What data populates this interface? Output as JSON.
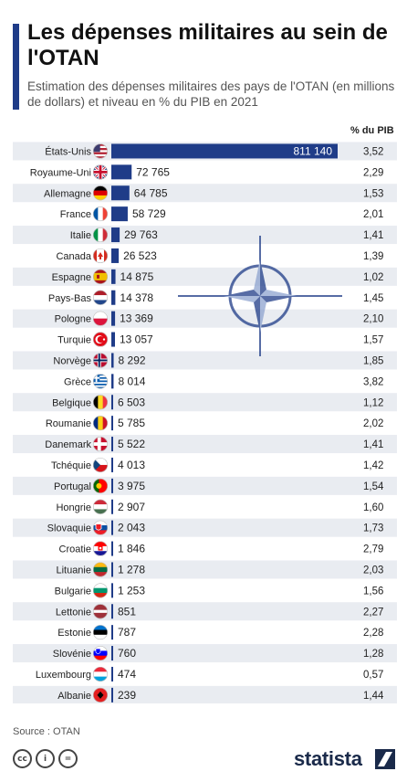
{
  "header": {
    "title": "Les dépenses militaires au sein de l'OTAN",
    "subtitle": "Estimation des dépenses militaires des pays de l'OTAN (en millions de dollars) et niveau en % du PIB en 2021"
  },
  "pib_header": "% du PIB",
  "footer": {
    "source": "Source : OTAN",
    "brand": "statista"
  },
  "colors": {
    "bar": "#1f3c88",
    "row_alt": "#e9ecf1",
    "accent": "#1f3c88"
  },
  "chart_data": {
    "type": "bar",
    "orientation": "horizontal",
    "title": "Les dépenses militaires au sein de l'OTAN",
    "categories": [
      "États-Unis",
      "Royaume-Uni",
      "Allemagne",
      "France",
      "Italie",
      "Canada",
      "Espagne",
      "Pays-Bas",
      "Pologne",
      "Turquie",
      "Norvège",
      "Grèce",
      "Belgique",
      "Roumanie",
      "Danemark",
      "Tchéquie",
      "Portugal",
      "Hongrie",
      "Slovaquie",
      "Croatie",
      "Lituanie",
      "Bulgarie",
      "Lettonie",
      "Estonie",
      "Slovénie",
      "Luxembourg",
      "Albanie"
    ],
    "values": [
      811140,
      72765,
      64785,
      58729,
      29763,
      26523,
      14875,
      14378,
      13369,
      13057,
      8292,
      8014,
      6503,
      5785,
      5522,
      4013,
      3975,
      2907,
      2043,
      1846,
      1278,
      1253,
      851,
      787,
      760,
      474,
      239
    ],
    "value_labels": [
      "811 140",
      "72 765",
      "64 785",
      "58 729",
      "29 763",
      "26 523",
      "14 875",
      "14 378",
      "13 369",
      "13 057",
      "8 292",
      "8 014",
      "6 503",
      "5 785",
      "5 522",
      "4 013",
      "3 975",
      "2 907",
      "2 043",
      "1 846",
      "1 278",
      "1 253",
      "851",
      "787",
      "760",
      "474",
      "239"
    ],
    "pib_percent": [
      "3,52",
      "2,29",
      "1,53",
      "2,01",
      "1,41",
      "1,39",
      "1,02",
      "1,45",
      "2,10",
      "1,57",
      "1,85",
      "3,82",
      "1,12",
      "2,02",
      "1,41",
      "1,42",
      "1,54",
      "1,60",
      "1,73",
      "2,79",
      "2,03",
      "1,56",
      "2,27",
      "2,28",
      "1,28",
      "0,57",
      "1,44"
    ],
    "flag_icons": [
      "flag-us",
      "flag-uk",
      "flag-de",
      "flag-fr",
      "flag-it",
      "flag-ca",
      "flag-es",
      "flag-nl",
      "flag-pl",
      "flag-tr",
      "flag-no",
      "flag-gr",
      "flag-be",
      "flag-ro",
      "flag-dk",
      "flag-cz",
      "flag-pt",
      "flag-hu",
      "flag-sk",
      "flag-hr",
      "flag-lt",
      "flag-bg",
      "flag-lv",
      "flag-ee",
      "flag-si",
      "flag-lu",
      "flag-al"
    ],
    "xlim": [
      0,
      811140
    ],
    "grid": false,
    "legend": "none"
  }
}
